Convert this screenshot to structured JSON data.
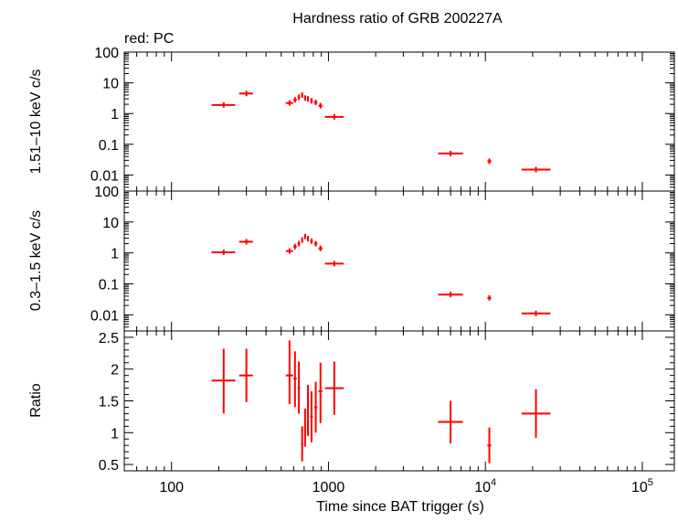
{
  "title": "Hardness ratio of GRB 200227A",
  "legend_note": "red: PC",
  "xlabel": "Time since BAT trigger (s)",
  "x_tick_labels": [
    {
      "value": 100,
      "base": "100",
      "exp": ""
    },
    {
      "value": 1000,
      "base": "1000",
      "exp": ""
    },
    {
      "value": 10000,
      "base": "10",
      "exp": "4"
    },
    {
      "value": 100000,
      "base": "10",
      "exp": "5"
    }
  ],
  "colors": {
    "series": "#ff0000",
    "axes": "#000000",
    "background": "#ffffff"
  },
  "chart_data": [
    {
      "type": "scatter",
      "panel": "top",
      "ylabel": "1.51–10 keV c/s",
      "xscale": "log",
      "yscale": "log",
      "xlim": [
        50,
        160000
      ],
      "ylim": [
        0.003,
        100
      ],
      "ytick_labels": [
        {
          "value": 100,
          "label": "100"
        },
        {
          "value": 10,
          "label": "10"
        },
        {
          "value": 1,
          "label": "1"
        },
        {
          "value": 0.1,
          "label": "0.1"
        },
        {
          "value": 0.01,
          "label": "0.01"
        }
      ],
      "series": [
        {
          "color": "#ff0000",
          "points": [
            {
              "x": 215,
              "xlo": 180,
              "xhi": 255,
              "y": 1.9
            },
            {
              "x": 300,
              "xlo": 270,
              "xhi": 330,
              "y": 4.5
            },
            {
              "x": 565,
              "xlo": 535,
              "xhi": 595,
              "y": 2.2
            },
            {
              "x": 612,
              "xlo": 598,
              "xhi": 628,
              "y": 2.8
            },
            {
              "x": 648,
              "xlo": 636,
              "xhi": 660,
              "y": 3.4
            },
            {
              "x": 680,
              "xlo": 670,
              "xhi": 690,
              "y": 4.0
            },
            {
              "x": 710,
              "xlo": 700,
              "xhi": 720,
              "y": 3.2
            },
            {
              "x": 740,
              "xlo": 730,
              "xhi": 750,
              "y": 3.0
            },
            {
              "x": 780,
              "xlo": 765,
              "xhi": 795,
              "y": 2.6
            },
            {
              "x": 830,
              "xlo": 810,
              "xhi": 850,
              "y": 2.3
            },
            {
              "x": 890,
              "xlo": 865,
              "xhi": 915,
              "y": 1.8
            },
            {
              "x": 1090,
              "xlo": 950,
              "xhi": 1250,
              "y": 0.78
            },
            {
              "x": 6000,
              "xlo": 5000,
              "xhi": 7200,
              "y": 0.05
            },
            {
              "x": 10600,
              "xlo": 10300,
              "xhi": 10900,
              "y": 0.028
            },
            {
              "x": 21000,
              "xlo": 17000,
              "xhi": 26000,
              "y": 0.015
            }
          ]
        }
      ]
    },
    {
      "type": "scatter",
      "panel": "middle",
      "ylabel": "0.3–1.5 keV c/s",
      "xscale": "log",
      "yscale": "log",
      "xlim": [
        50,
        160000
      ],
      "ylim": [
        0.003,
        100
      ],
      "ytick_labels": [
        {
          "value": 100,
          "label": "100"
        },
        {
          "value": 10,
          "label": "10"
        },
        {
          "value": 1,
          "label": "1"
        },
        {
          "value": 0.1,
          "label": "0.1"
        },
        {
          "value": 0.01,
          "label": "0.01"
        }
      ],
      "series": [
        {
          "color": "#ff0000",
          "points": [
            {
              "x": 215,
              "xlo": 180,
              "xhi": 255,
              "y": 1.05
            },
            {
              "x": 300,
              "xlo": 270,
              "xhi": 330,
              "y": 2.3
            },
            {
              "x": 565,
              "xlo": 535,
              "xhi": 595,
              "y": 1.15
            },
            {
              "x": 612,
              "xlo": 598,
              "xhi": 628,
              "y": 1.6
            },
            {
              "x": 648,
              "xlo": 636,
              "xhi": 660,
              "y": 2.0
            },
            {
              "x": 680,
              "xlo": 670,
              "xhi": 690,
              "y": 2.6
            },
            {
              "x": 710,
              "xlo": 700,
              "xhi": 720,
              "y": 3.4
            },
            {
              "x": 740,
              "xlo": 730,
              "xhi": 750,
              "y": 2.9
            },
            {
              "x": 780,
              "xlo": 765,
              "xhi": 795,
              "y": 2.4
            },
            {
              "x": 830,
              "xlo": 810,
              "xhi": 850,
              "y": 2.0
            },
            {
              "x": 890,
              "xlo": 865,
              "xhi": 915,
              "y": 1.4
            },
            {
              "x": 1090,
              "xlo": 950,
              "xhi": 1250,
              "y": 0.45
            },
            {
              "x": 6000,
              "xlo": 5000,
              "xhi": 7200,
              "y": 0.045
            },
            {
              "x": 10600,
              "xlo": 10300,
              "xhi": 10900,
              "y": 0.035
            },
            {
              "x": 21000,
              "xlo": 17000,
              "xhi": 26000,
              "y": 0.011
            }
          ]
        }
      ]
    },
    {
      "type": "scatter",
      "panel": "bottom",
      "ylabel": "Ratio",
      "xscale": "log",
      "yscale": "linear",
      "xlim": [
        50,
        160000
      ],
      "ylim": [
        0.4,
        2.6
      ],
      "ytick_labels": [
        {
          "value": 2.5,
          "label": "2.5"
        },
        {
          "value": 2,
          "label": "2"
        },
        {
          "value": 1.5,
          "label": "1.5"
        },
        {
          "value": 1,
          "label": "1"
        },
        {
          "value": 0.5,
          "label": "0.5"
        }
      ],
      "series": [
        {
          "color": "#ff0000",
          "points": [
            {
              "x": 215,
              "xlo": 180,
              "xhi": 255,
              "y": 1.82,
              "ylo": 1.3,
              "yhi": 2.32
            },
            {
              "x": 300,
              "xlo": 270,
              "xhi": 330,
              "y": 1.9,
              "ylo": 1.48,
              "yhi": 2.32
            },
            {
              "x": 565,
              "xlo": 535,
              "xhi": 595,
              "y": 1.9,
              "ylo": 1.45,
              "yhi": 2.45
            },
            {
              "x": 612,
              "xlo": 598,
              "xhi": 628,
              "y": 1.85,
              "ylo": 1.4,
              "yhi": 2.28
            },
            {
              "x": 648,
              "xlo": 636,
              "xhi": 660,
              "y": 1.7,
              "ylo": 1.3,
              "yhi": 2.12
            },
            {
              "x": 680,
              "xlo": 670,
              "xhi": 690,
              "y": 0.82,
              "ylo": 0.55,
              "yhi": 1.1
            },
            {
              "x": 710,
              "xlo": 700,
              "xhi": 720,
              "y": 1.05,
              "ylo": 0.78,
              "yhi": 1.38
            },
            {
              "x": 740,
              "xlo": 730,
              "xhi": 750,
              "y": 1.35,
              "ylo": 0.95,
              "yhi": 1.75
            },
            {
              "x": 780,
              "xlo": 765,
              "xhi": 795,
              "y": 1.25,
              "ylo": 0.85,
              "yhi": 1.65
            },
            {
              "x": 830,
              "xlo": 810,
              "xhi": 850,
              "y": 1.4,
              "ylo": 1.0,
              "yhi": 1.8
            },
            {
              "x": 890,
              "xlo": 865,
              "xhi": 915,
              "y": 1.65,
              "ylo": 1.15,
              "yhi": 2.1
            },
            {
              "x": 1090,
              "xlo": 950,
              "xhi": 1250,
              "y": 1.7,
              "ylo": 1.28,
              "yhi": 2.12
            },
            {
              "x": 6000,
              "xlo": 5000,
              "xhi": 7200,
              "y": 1.17,
              "ylo": 0.83,
              "yhi": 1.5
            },
            {
              "x": 10600,
              "xlo": 10300,
              "xhi": 10900,
              "y": 0.8,
              "ylo": 0.52,
              "yhi": 1.08
            },
            {
              "x": 21000,
              "xlo": 17000,
              "xhi": 26000,
              "y": 1.3,
              "ylo": 0.92,
              "yhi": 1.68
            }
          ]
        }
      ]
    }
  ]
}
